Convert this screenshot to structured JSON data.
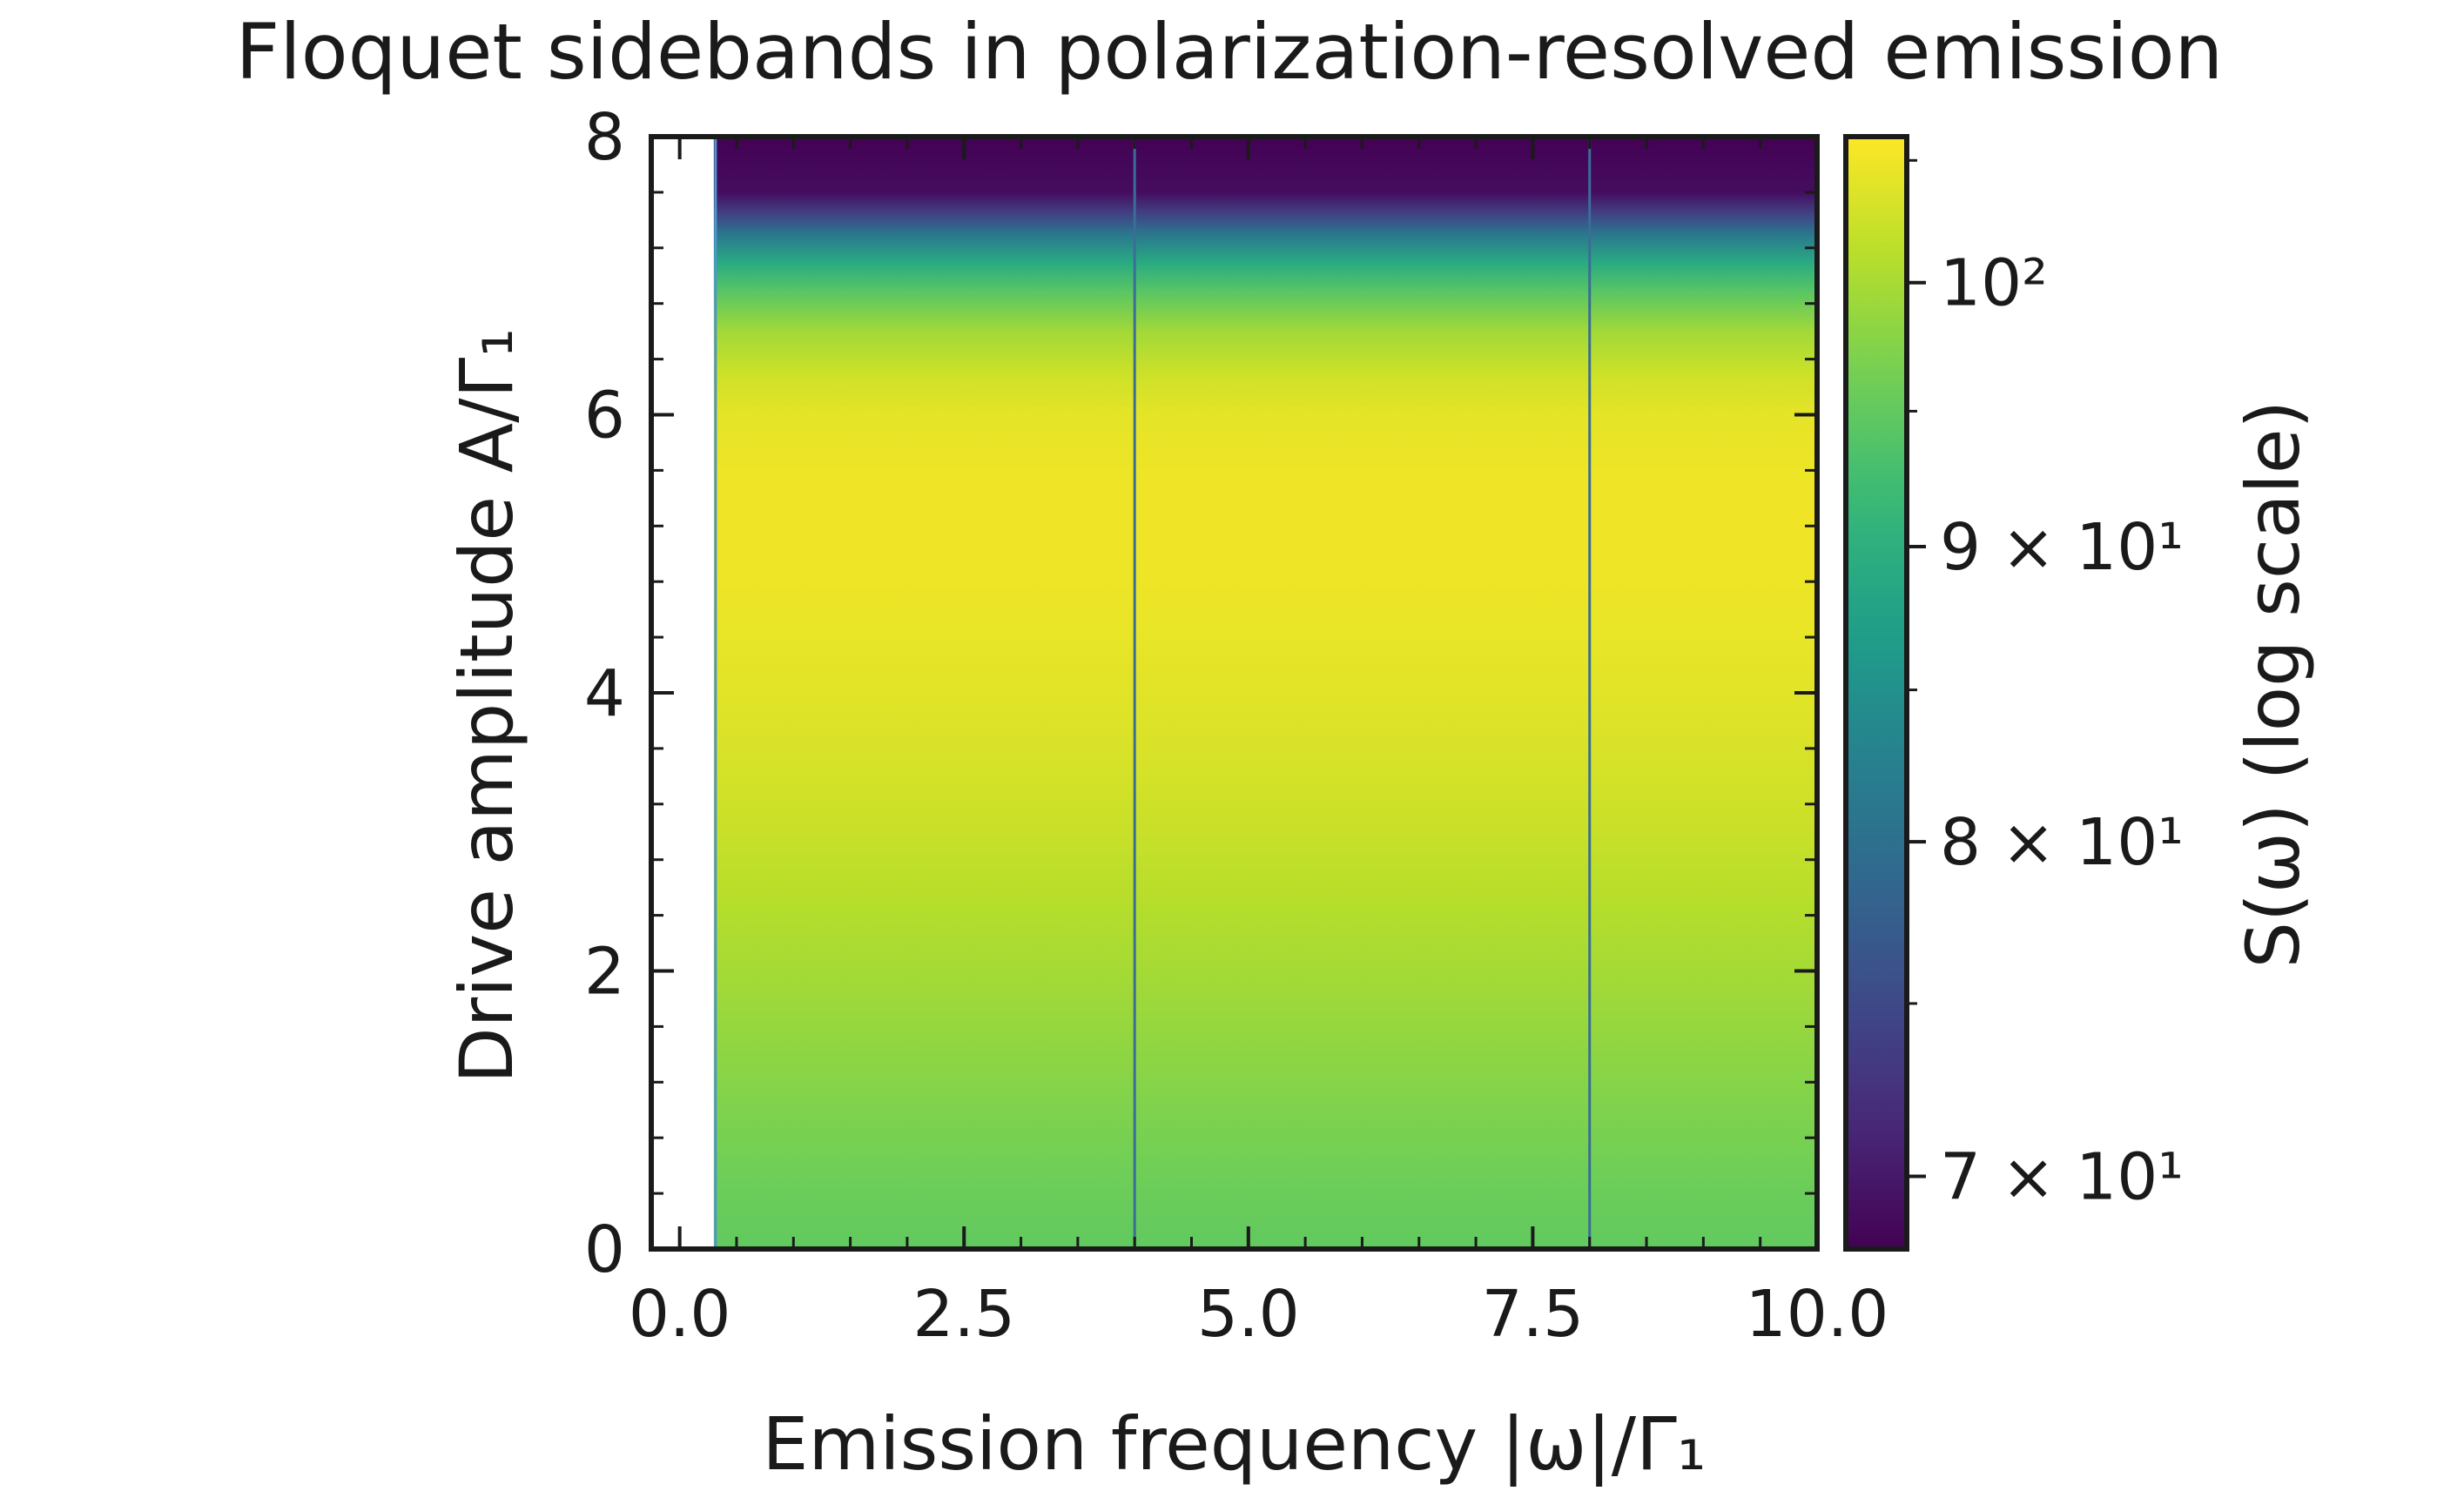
{
  "chart_data": {
    "type": "heatmap",
    "title": "Floquet sidebands in polarization-resolved emission",
    "xlabel": "Emission frequency |ω|/Γ₁",
    "ylabel": "Drive amplitude A/Γ₁",
    "xlim": [
      -0.25,
      10.0
    ],
    "ylim": [
      0,
      8
    ],
    "data_x_start": 0.3,
    "x_ticks": [
      "0.0",
      "2.5",
      "5.0",
      "7.5",
      "10.0"
    ],
    "x_tick_values": [
      0.0,
      2.5,
      5.0,
      7.5,
      10.0
    ],
    "y_ticks": [
      "0",
      "2",
      "4",
      "6",
      "8"
    ],
    "y_tick_values": [
      0,
      2,
      4,
      6,
      8
    ],
    "sideband_lines_x": [
      4.0,
      8.0
    ],
    "colormap": "viridis",
    "color_scale": "log",
    "color_range": [
      68,
      106
    ],
    "colorbar_label": "S(ω) (log scale)",
    "colorbar_ticks": [
      {
        "value": 70,
        "label": "7 × 10¹"
      },
      {
        "value": 80,
        "label": "8 × 10¹"
      },
      {
        "value": 90,
        "label": "9 × 10¹"
      },
      {
        "value": 100,
        "label": "10²"
      }
    ],
    "profile": {
      "amplitude": [
        0.0,
        0.5,
        1.0,
        1.5,
        2.0,
        2.5,
        3.0,
        3.5,
        4.0,
        4.5,
        5.0,
        5.5,
        6.0,
        6.3,
        6.6,
        6.9,
        7.1,
        7.3,
        7.45,
        7.6,
        8.0
      ],
      "S": [
        95.0,
        96.0,
        97.2,
        98.5,
        99.8,
        101.0,
        102.2,
        103.2,
        104.0,
        104.6,
        105.0,
        105.0,
        104.3,
        102.5,
        99.5,
        94.0,
        89.0,
        81.0,
        74.0,
        69.0,
        68.0
      ]
    }
  }
}
